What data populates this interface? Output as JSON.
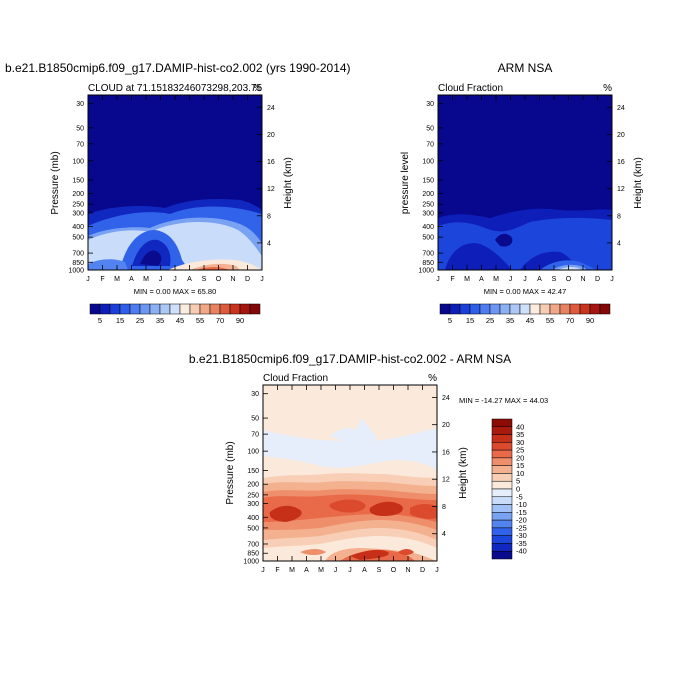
{
  "figure": {
    "colors": {
      "top_colorbar": [
        "#08088f",
        "#0d1fb8",
        "#1b3fd8",
        "#2f5ee8",
        "#4d7df0",
        "#6c96f2",
        "#8cb0f4",
        "#adc8f6",
        "#cfe0fa",
        "#fbece0",
        "#f6cdb2",
        "#f0a888",
        "#e88260",
        "#de5a3c",
        "#c8341e",
        "#a51610",
        "#820808"
      ],
      "diff_colorbar": [
        "#0a0a8e",
        "#1028c0",
        "#1c45dc",
        "#3062ea",
        "#5283ef",
        "#79a2f3",
        "#a1c0f6",
        "#c9dcfa",
        "#e6eefb",
        "#fbe9db",
        "#f8cfb6",
        "#f4b190",
        "#ef8e6a",
        "#e86a48",
        "#db4a2c",
        "#c63018",
        "#a81b0c",
        "#8c0c05"
      ]
    }
  },
  "panels": {
    "model": {
      "title": "b.e21.B1850cmip6.f09_g17.DAMIP-hist-co2.002 (yrs 1990-2014)",
      "subtitle_left": "CLOUD at 71.15183246073298,203.75",
      "subtitle_right": "%",
      "ylabel": "Pressure (mb)",
      "ylabel_right": "Height (km)",
      "minmax": "MIN =   0.00 MAX =  65.80"
    },
    "obs": {
      "title": "ARM NSA",
      "subtitle_left": "Cloud Fraction",
      "subtitle_right": "%",
      "ylabel": "pressure level",
      "ylabel_right": "Height (km)",
      "minmax": "MIN =   0.00 MAX =  42.47"
    },
    "diff": {
      "title": "b.e21.B1850cmip6.f09_g17.DAMIP-hist-co2.002 - ARM NSA",
      "subtitle_left": "Cloud Fraction",
      "subtitle_right": "%",
      "ylabel": "Pressure (mb)",
      "ylabel_right": "Height (km)",
      "minmax": "MIN = -14.27 MAX =  44.03"
    }
  },
  "chart_data": [
    {
      "type": "heatmap",
      "name": "model",
      "title": "b.e21.B1850cmip6.f09_g17.DAMIP-hist-co2.002 (yrs 1990-2014)",
      "xlabel": "",
      "ylabel": "Pressure (mb)",
      "x_ticks": [
        "J",
        "F",
        "M",
        "A",
        "M",
        "J",
        "J",
        "A",
        "S",
        "O",
        "N",
        "D",
        "J"
      ],
      "y_ticks": [
        30,
        50,
        70,
        100,
        150,
        200,
        250,
        300,
        400,
        500,
        700,
        850,
        1000
      ],
      "y2_ticks": [
        24,
        20,
        16,
        12,
        8,
        4
      ],
      "levels": [
        5,
        15,
        25,
        35,
        45,
        55,
        70,
        90
      ],
      "colorbar_labels": [
        "5",
        "15",
        "25",
        "35",
        "45",
        "55",
        "70",
        "90"
      ],
      "min": 0.0,
      "max": 65.8
    },
    {
      "type": "heatmap",
      "name": "obs",
      "title": "ARM NSA",
      "ylabel": "pressure level",
      "x_ticks": [
        "J",
        "F",
        "M",
        "A",
        "M",
        "J",
        "J",
        "A",
        "S",
        "O",
        "N",
        "D",
        "J"
      ],
      "y_ticks": [
        30,
        50,
        70,
        100,
        150,
        200,
        250,
        300,
        400,
        500,
        700,
        850,
        1000
      ],
      "y2_ticks": [
        24,
        20,
        16,
        12,
        8,
        4
      ],
      "levels": [
        5,
        15,
        25,
        35,
        45,
        55,
        70,
        90
      ],
      "colorbar_labels": [
        "5",
        "15",
        "25",
        "35",
        "45",
        "55",
        "70",
        "90"
      ],
      "min": 0.0,
      "max": 42.47
    },
    {
      "type": "heatmap",
      "name": "difference",
      "title": "b.e21.B1850cmip6.f09_g17.DAMIP-hist-co2.002 - ARM NSA",
      "ylabel": "Pressure (mb)",
      "x_ticks": [
        "J",
        "F",
        "M",
        "A",
        "M",
        "J",
        "J",
        "A",
        "S",
        "O",
        "N",
        "D",
        "J"
      ],
      "y_ticks": [
        30,
        50,
        70,
        100,
        150,
        200,
        250,
        300,
        400,
        500,
        700,
        850,
        1000
      ],
      "y2_ticks": [
        24,
        20,
        16,
        12,
        8,
        4
      ],
      "levels": [
        -40,
        -35,
        -30,
        -25,
        -20,
        -15,
        -10,
        -5,
        0,
        5,
        10,
        15,
        20,
        25,
        30,
        35,
        40
      ],
      "colorbar_labels": [
        "40",
        "35",
        "30",
        "25",
        "20",
        "15",
        "10",
        "5",
        "0",
        "-5",
        "-10",
        "-15",
        "-20",
        "-25",
        "-30",
        "-35",
        "-40"
      ],
      "min": -14.27,
      "max": 44.03
    }
  ]
}
